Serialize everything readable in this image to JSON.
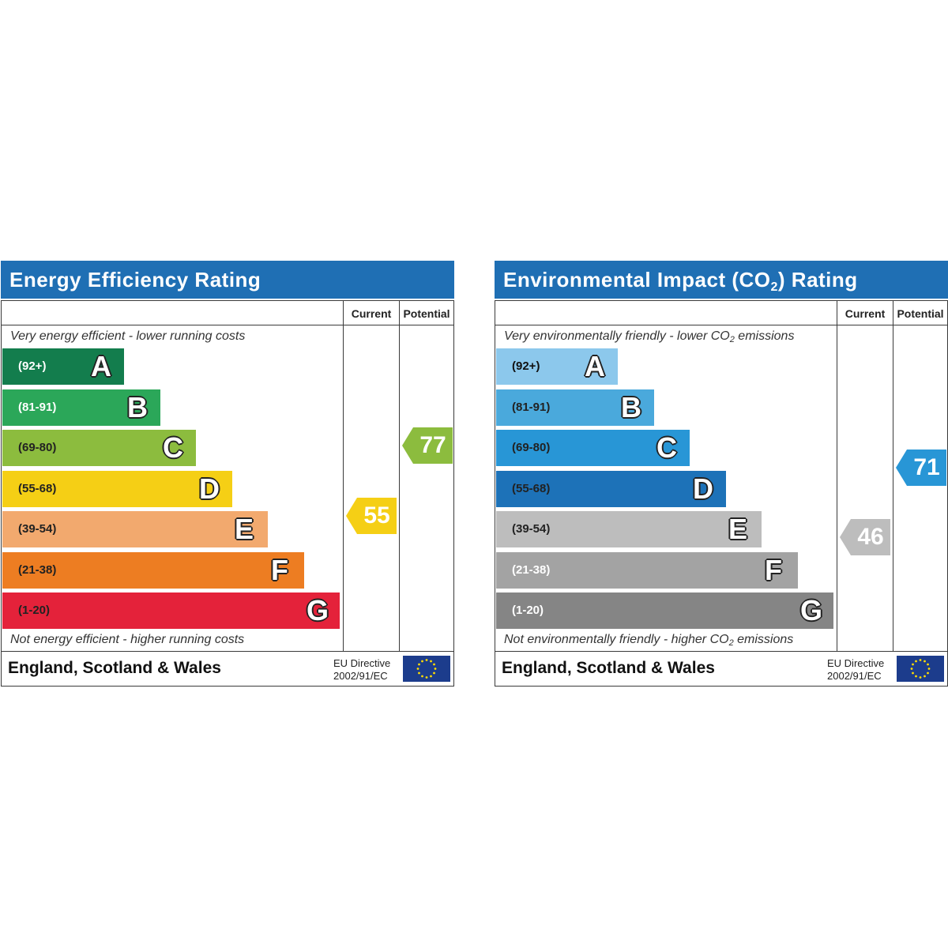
{
  "chart_data": [
    {
      "type": "bar",
      "title": "Energy Efficiency Rating",
      "column_headers": {
        "current": "Current",
        "potential": "Potential"
      },
      "top_caption": "Very energy efficient - lower running costs",
      "bottom_caption": "Not energy efficient - higher running costs",
      "categories": [
        "A",
        "B",
        "C",
        "D",
        "E",
        "F",
        "G"
      ],
      "ranges": [
        "(92+)",
        "(81-91)",
        "(69-80)",
        "(55-68)",
        "(39-54)",
        "(21-38)",
        "(1-20)"
      ],
      "band_colors": [
        "#137d4d",
        "#2ba759",
        "#8cbc3e",
        "#f5cf15",
        "#f2a96e",
        "#ed7d22",
        "#e4223a"
      ],
      "range_text_colors": [
        "#ffffff",
        "#ffffff",
        "#222222",
        "#222222",
        "#222222",
        "#222222",
        "#222222"
      ],
      "current": {
        "value": 55,
        "band": "D",
        "color": "#f5cf15"
      },
      "potential": {
        "value": 77,
        "band": "C",
        "color": "#8cbc3e"
      },
      "footer": {
        "country": "England, Scotland & Wales",
        "directive_line1": "EU Directive",
        "directive_line2": "2002/91/EC"
      }
    },
    {
      "type": "bar",
      "title_parts": [
        "Environmental Impact (CO",
        "2",
        ") Rating"
      ],
      "column_headers": {
        "current": "Current",
        "potential": "Potential"
      },
      "top_caption_parts": [
        "Very environmentally friendly - lower CO",
        "2",
        " emissions"
      ],
      "bottom_caption_parts": [
        "Not environmentally friendly - higher CO",
        "2",
        " emissions"
      ],
      "categories": [
        "A",
        "B",
        "C",
        "D",
        "E",
        "F",
        "G"
      ],
      "ranges": [
        "(92+)",
        "(81-91)",
        "(69-80)",
        "(55-68)",
        "(39-54)",
        "(21-38)",
        "(1-20)"
      ],
      "band_colors": [
        "#8cc8ec",
        "#4aa9dc",
        "#2896d6",
        "#1d72b8",
        "#bdbdbd",
        "#a3a3a3",
        "#858585"
      ],
      "range_text_colors": [
        "#111111",
        "#222222",
        "#222222",
        "#222222",
        "#222222",
        "#ffffff",
        "#ffffff"
      ],
      "current": {
        "value": 46,
        "band": "E",
        "color": "#bdbdbd"
      },
      "potential": {
        "value": 71,
        "band": "C",
        "color": "#2896d6"
      },
      "footer": {
        "country": "England, Scotland & Wales",
        "directive_line1": "EU Directive",
        "directive_line2": "2002/91/EC"
      }
    }
  ]
}
